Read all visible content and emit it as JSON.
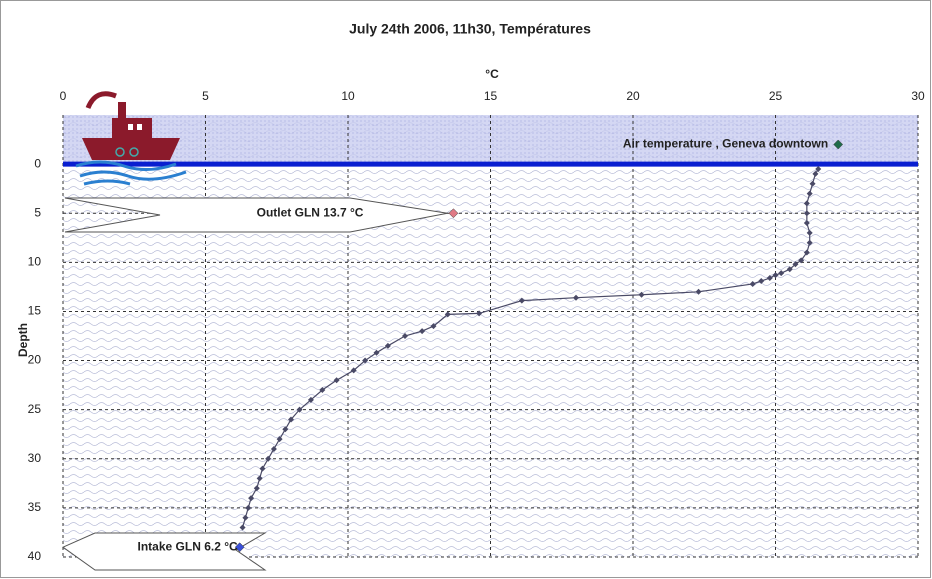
{
  "chart_data": {
    "type": "scatter",
    "title": "July 24th 2006, 11h30, Températures",
    "x_label": "°C",
    "y_label": "Depth",
    "xlim": [
      0,
      30
    ],
    "xticks": [
      0,
      5,
      10,
      15,
      20,
      25,
      30
    ],
    "ylim": [
      -5,
      40
    ],
    "yticks": [
      0,
      5,
      10,
      15,
      20,
      25,
      30,
      35,
      40
    ],
    "y_inverted": true,
    "x_axis_position": "top",
    "grid": true,
    "series": [
      {
        "color": "#4a4a66",
        "line": true,
        "x": [
          26.5,
          26.4,
          26.3,
          26.2,
          26.1,
          26.1,
          26.1,
          26.2,
          26.2,
          26.1,
          25.9,
          25.7,
          25.5,
          25.2,
          25.0,
          24.8,
          24.5,
          24.2,
          22.3,
          20.3,
          18.0,
          16.1,
          14.6,
          13.5,
          13.0,
          12.6,
          12.0,
          11.4,
          11.0,
          10.6,
          10.2,
          9.6,
          9.1,
          8.7,
          8.3,
          8.0,
          7.8,
          7.6,
          7.4,
          7.2,
          7.0,
          6.9,
          6.8,
          6.6,
          6.5,
          6.4,
          6.3
        ],
        "values": [
          0.5,
          1,
          2,
          3,
          4,
          5,
          6,
          7,
          8,
          9,
          9.8,
          10.2,
          10.7,
          11.1,
          11.3,
          11.6,
          11.9,
          12.2,
          13,
          13.3,
          13.6,
          13.9,
          15.2,
          15.3,
          16.5,
          17,
          17.5,
          18.5,
          19.2,
          20,
          21,
          22,
          23,
          24,
          25,
          26,
          27,
          28,
          29,
          30,
          31,
          32,
          33,
          34,
          35,
          36,
          37
        ]
      },
      {
        "name": "Air temperature , Geneva downtown",
        "color": "#1f6b4a",
        "x": [
          27.2
        ],
        "values": [
          -2
        ]
      },
      {
        "name": "Outlet GLN  13.7 °C",
        "color": "#e07a86",
        "x": [
          13.7
        ],
        "values": [
          5
        ]
      },
      {
        "name": "Intake GLN 6.2 °C",
        "color": "#3a4fd8",
        "x": [
          6.2
        ],
        "values": [
          39
        ]
      }
    ]
  }
}
